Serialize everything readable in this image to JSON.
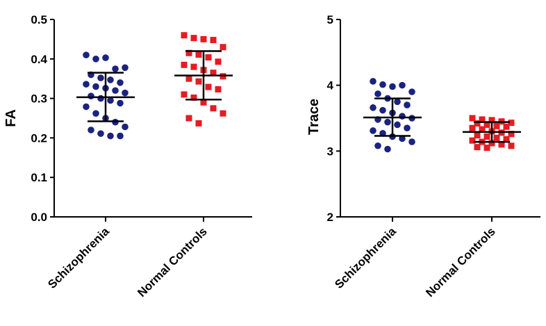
{
  "chart_data": [
    {
      "type": "scatter",
      "ylabel": "FA",
      "ylim": [
        0.0,
        0.5
      ],
      "yticks": [
        "0.0",
        "0.1",
        "0.2",
        "0.3",
        "0.4",
        "0.5"
      ],
      "categories": [
        "Schizophrenia",
        "Normal Controls"
      ],
      "colors": [
        "#1a237e",
        "#e51c23"
      ],
      "series": [
        {
          "mean": 0.303,
          "sd_low": 0.242,
          "sd_high": 0.365,
          "points": [
            0.41,
            0.4,
            0.403,
            0.375,
            0.378,
            0.36,
            0.352,
            0.347,
            0.34,
            0.336,
            0.33,
            0.326,
            0.32,
            0.314,
            0.306,
            0.3,
            0.295,
            0.288,
            0.279,
            0.262,
            0.25,
            0.24,
            0.228,
            0.22,
            0.211,
            0.205,
            0.205
          ]
        },
        {
          "mean": 0.358,
          "sd_low": 0.297,
          "sd_high": 0.42,
          "points": [
            0.46,
            0.453,
            0.45,
            0.448,
            0.43,
            0.415,
            0.411,
            0.404,
            0.393,
            0.385,
            0.38,
            0.372,
            0.365,
            0.356,
            0.35,
            0.343,
            0.329,
            0.323,
            0.31,
            0.302,
            0.29,
            0.275,
            0.262,
            0.25,
            0.237
          ]
        }
      ]
    },
    {
      "type": "scatter",
      "ylabel": "Trace",
      "ylim": [
        2,
        5
      ],
      "yticks": [
        "2",
        "3",
        "4",
        "5"
      ],
      "categories": [
        "Schizophrenia",
        "Normal Controls"
      ],
      "colors": [
        "#1a237e",
        "#e51c23"
      ],
      "series": [
        {
          "mean": 3.51,
          "sd_low": 3.23,
          "sd_high": 3.8,
          "points": [
            4.06,
            4.01,
            3.98,
            4.0,
            3.9,
            3.87,
            3.8,
            3.75,
            3.7,
            3.66,
            3.62,
            3.58,
            3.53,
            3.5,
            3.48,
            3.44,
            3.4,
            3.35,
            3.31,
            3.27,
            3.22,
            3.19,
            3.14,
            3.08,
            3.03
          ]
        },
        {
          "mean": 3.29,
          "sd_low": 3.14,
          "sd_high": 3.44,
          "points": [
            3.5,
            3.48,
            3.47,
            3.45,
            3.43,
            3.42,
            3.4,
            3.38,
            3.37,
            3.35,
            3.33,
            3.3,
            3.28,
            3.26,
            3.24,
            3.22,
            3.2,
            3.18,
            3.16,
            3.14,
            3.12,
            3.1,
            3.08,
            3.06,
            3.05
          ]
        }
      ]
    }
  ]
}
